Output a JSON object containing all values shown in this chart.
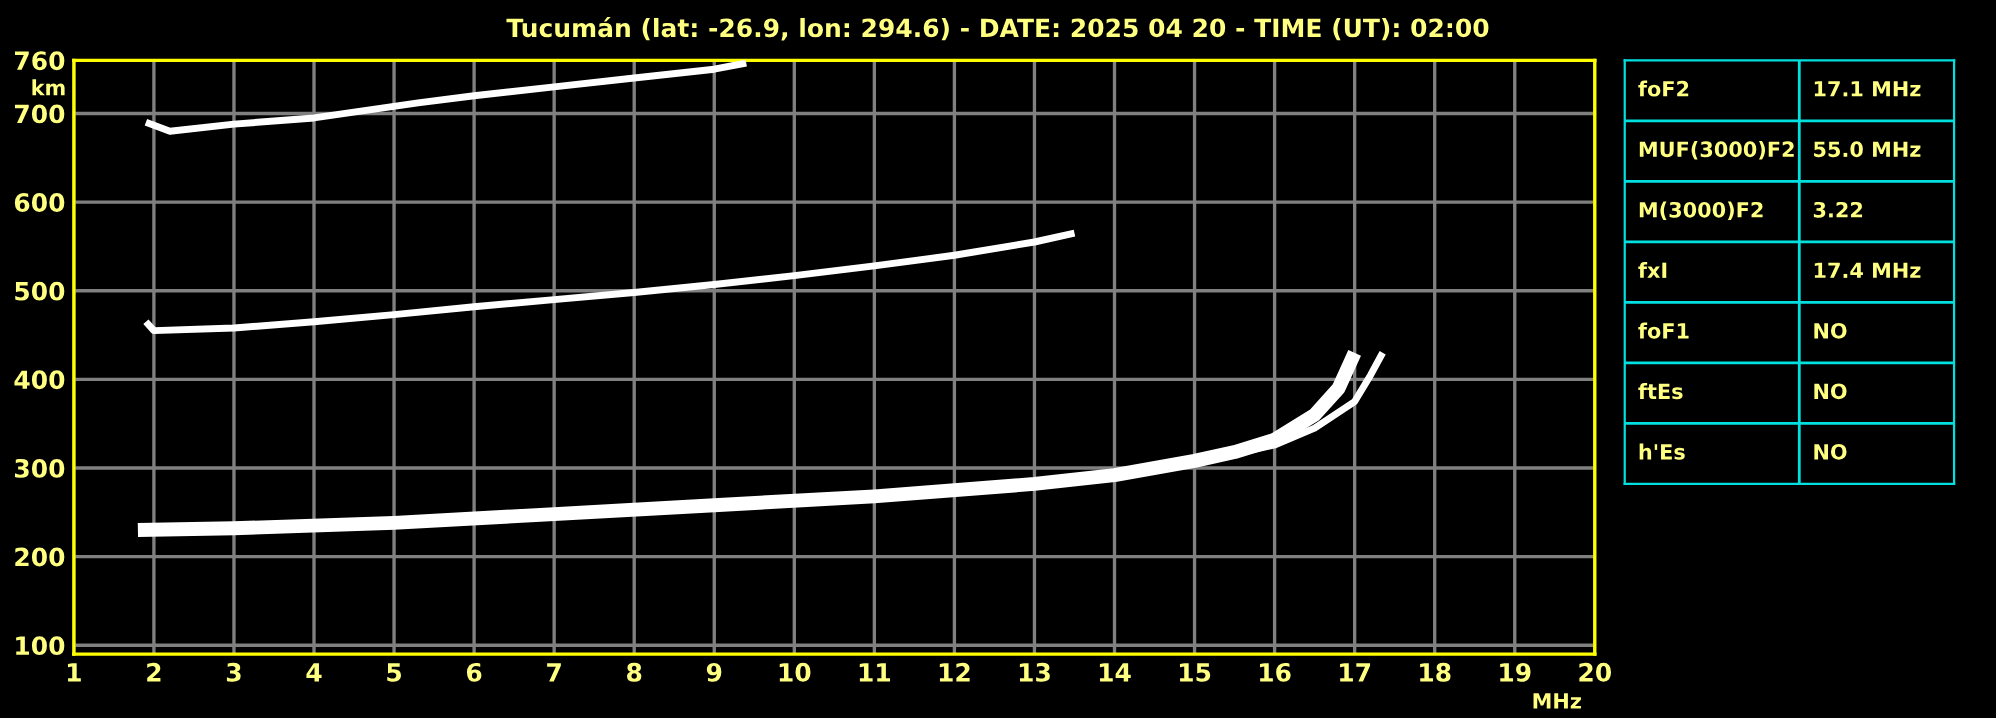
{
  "chart_data": [
    {
      "type": "line",
      "title": "Tucumán (lat: -26.9, lon: 294.6) - DATE: 2025 04 20 - TIME (UT): 02:00",
      "xlabel": "MHz",
      "ylabel": "km",
      "xlim": [
        1,
        20
      ],
      "ylim": [
        90,
        760
      ],
      "xticks": [
        1,
        2,
        3,
        4,
        5,
        6,
        7,
        8,
        9,
        10,
        11,
        12,
        13,
        14,
        15,
        16,
        17,
        18,
        19,
        20
      ],
      "yticks": [
        100,
        200,
        300,
        400,
        500,
        600,
        700,
        760
      ],
      "grid": true,
      "marker": "none",
      "line_style": "solid",
      "series": [
        {
          "color": "#ffffff",
          "x": [
            1.8,
            3,
            5,
            7,
            9,
            11,
            13,
            14,
            15,
            15.5,
            16,
            16.5,
            16.8,
            17.0
          ],
          "values": [
            230,
            232,
            238,
            248,
            258,
            268,
            282,
            292,
            308,
            318,
            332,
            360,
            390,
            430
          ]
        },
        {
          "color": "#ffffff",
          "x": [
            15.5,
            16,
            16.5,
            17,
            17.2,
            17.35
          ],
          "values": [
            316,
            326,
            345,
            375,
            405,
            430
          ]
        },
        {
          "color": "#ffffff",
          "x": [
            1.9,
            2.0,
            3,
            4,
            5,
            6,
            7,
            8,
            9,
            10,
            11,
            12,
            13,
            13.5
          ],
          "values": [
            465,
            455,
            458,
            465,
            473,
            482,
            490,
            498,
            507,
            517,
            528,
            540,
            555,
            565
          ]
        },
        {
          "color": "#ffffff",
          "x": [
            1.9,
            2.2,
            3,
            4,
            5.3,
            6,
            7,
            8,
            9,
            9.4
          ],
          "values": [
            690,
            680,
            688,
            695,
            712,
            720,
            730,
            740,
            750,
            757
          ]
        }
      ]
    },
    {
      "type": "other",
      "annotations": [
        "foF2",
        "17.1 MHz",
        "MUF(3000)F2",
        "55.0 MHz",
        "M(3000)F2",
        "3.22",
        "fxI",
        "17.4 MHz",
        "foF1",
        "NO",
        "ftEs",
        "NO",
        "h'Es",
        "NO"
      ]
    }
  ]
}
